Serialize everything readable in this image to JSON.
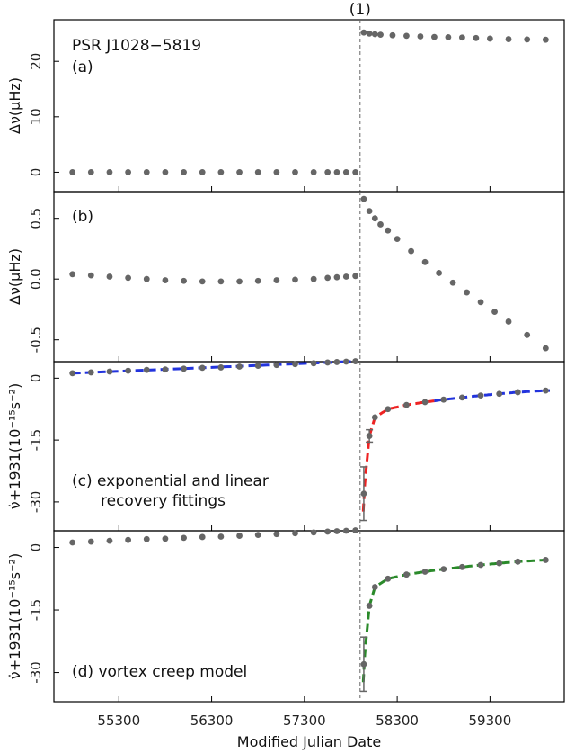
{
  "chart_data": {
    "type": "scatter",
    "xlabel": "Modified Julian Date",
    "xlim": [
      54600,
      60100
    ],
    "xticks": [
      55300,
      56300,
      57300,
      58300,
      59300
    ],
    "glitch": {
      "mjd": 57900,
      "label": "(1)"
    },
    "panels": [
      {
        "id": "a",
        "label": "(a)",
        "title": "PSR J1028−5819",
        "ylabel": "Δν(μHz)",
        "ylim": [
          -3.5,
          27.5
        ],
        "yticks": [
          0,
          10,
          20
        ],
        "points": [
          [
            54800,
            0.0
          ],
          [
            55000,
            0.0
          ],
          [
            55200,
            0.0
          ],
          [
            55400,
            0.0
          ],
          [
            55600,
            0.0
          ],
          [
            55800,
            0.0
          ],
          [
            56000,
            0.0
          ],
          [
            56200,
            0.0
          ],
          [
            56400,
            0.0
          ],
          [
            56600,
            0.0
          ],
          [
            56800,
            0.0
          ],
          [
            57000,
            0.0
          ],
          [
            57200,
            0.0
          ],
          [
            57400,
            0.0
          ],
          [
            57550,
            0.0
          ],
          [
            57650,
            0.0
          ],
          [
            57750,
            0.0
          ],
          [
            57850,
            0.0
          ],
          [
            57940,
            25.2
          ],
          [
            58000,
            25.0
          ],
          [
            58060,
            24.9
          ],
          [
            58120,
            24.8
          ],
          [
            58250,
            24.7
          ],
          [
            58400,
            24.6
          ],
          [
            58550,
            24.5
          ],
          [
            58700,
            24.4
          ],
          [
            58850,
            24.35
          ],
          [
            59000,
            24.3
          ],
          [
            59150,
            24.2
          ],
          [
            59300,
            24.1
          ],
          [
            59500,
            24.0
          ],
          [
            59700,
            23.95
          ],
          [
            59900,
            23.9
          ]
        ]
      },
      {
        "id": "b",
        "label": "(b)",
        "ylabel": "Δν(μHz)",
        "ylim": [
          -0.68,
          0.72
        ],
        "yticks": [
          -0.5,
          0.0,
          0.5
        ],
        "points": [
          [
            54800,
            0.04
          ],
          [
            55000,
            0.03
          ],
          [
            55200,
            0.02
          ],
          [
            55400,
            0.01
          ],
          [
            55600,
            0.0
          ],
          [
            55800,
            -0.01
          ],
          [
            56000,
            -0.015
          ],
          [
            56200,
            -0.02
          ],
          [
            56400,
            -0.02
          ],
          [
            56600,
            -0.02
          ],
          [
            56800,
            -0.015
          ],
          [
            57000,
            -0.01
          ],
          [
            57200,
            -0.005
          ],
          [
            57400,
            0.0
          ],
          [
            57550,
            0.01
          ],
          [
            57650,
            0.015
          ],
          [
            57750,
            0.02
          ],
          [
            57850,
            0.025
          ],
          [
            57940,
            0.66
          ],
          [
            58000,
            0.56
          ],
          [
            58060,
            0.5
          ],
          [
            58120,
            0.45
          ],
          [
            58200,
            0.4
          ],
          [
            58300,
            0.33
          ],
          [
            58450,
            0.23
          ],
          [
            58600,
            0.14
          ],
          [
            58750,
            0.05
          ],
          [
            58900,
            -0.03
          ],
          [
            59050,
            -0.11
          ],
          [
            59200,
            -0.19
          ],
          [
            59350,
            -0.27
          ],
          [
            59500,
            -0.35
          ],
          [
            59700,
            -0.46
          ],
          [
            59900,
            -0.57
          ]
        ]
      },
      {
        "id": "c",
        "label": "(c) exponential and linear",
        "label2": "recovery fittings",
        "ylabel": "ν̇+1931(10⁻¹⁵s⁻²)",
        "ylim": [
          -37,
          4
        ],
        "yticks": [
          -30,
          -15,
          0
        ],
        "points": [
          [
            54800,
            1.2
          ],
          [
            55000,
            1.4
          ],
          [
            55200,
            1.6
          ],
          [
            55400,
            1.8
          ],
          [
            55600,
            2.0
          ],
          [
            55800,
            2.1
          ],
          [
            56000,
            2.3
          ],
          [
            56200,
            2.5
          ],
          [
            56400,
            2.6
          ],
          [
            56600,
            2.8
          ],
          [
            56800,
            3.0
          ],
          [
            57000,
            3.2
          ],
          [
            57200,
            3.4
          ],
          [
            57400,
            3.6
          ],
          [
            57550,
            3.8
          ],
          [
            57650,
            3.9
          ],
          [
            57750,
            4.0
          ],
          [
            57850,
            4.1
          ]
        ],
        "errorbars": [
          [
            57940,
            -28,
            6.5
          ],
          [
            58000,
            -14,
            1.5
          ]
        ],
        "points2": [
          [
            57940,
            -28
          ],
          [
            58000,
            -14
          ],
          [
            58060,
            -9.5
          ],
          [
            58200,
            -7.5
          ],
          [
            58400,
            -6.5
          ],
          [
            58600,
            -5.8
          ],
          [
            58800,
            -5.2
          ],
          [
            59000,
            -4.7
          ],
          [
            59200,
            -4.2
          ],
          [
            59400,
            -3.8
          ],
          [
            59600,
            -3.4
          ],
          [
            59900,
            -3.0
          ]
        ],
        "fits": [
          {
            "color": "#2233dd",
            "segment": "pre",
            "from": 54800,
            "to": 57880,
            "a": 1.2,
            "b": 4.1
          },
          {
            "color": "#ee2222",
            "segment": "post",
            "from": 57920,
            "to": 58700,
            "model": "exp"
          },
          {
            "color": "#2233dd",
            "segment": "post",
            "from": 58700,
            "to": 59950,
            "model": "lin"
          }
        ]
      },
      {
        "id": "d",
        "label": "(d) vortex creep model",
        "ylabel": "ν̇+1931(10⁻¹⁵s⁻²)",
        "ylim": [
          -37,
          4
        ],
        "yticks": [
          -30,
          -15,
          0
        ],
        "points": [
          [
            54800,
            1.2
          ],
          [
            55000,
            1.4
          ],
          [
            55200,
            1.6
          ],
          [
            55400,
            1.8
          ],
          [
            55600,
            2.0
          ],
          [
            55800,
            2.1
          ],
          [
            56000,
            2.3
          ],
          [
            56200,
            2.5
          ],
          [
            56400,
            2.6
          ],
          [
            56600,
            2.8
          ],
          [
            56800,
            3.0
          ],
          [
            57000,
            3.2
          ],
          [
            57200,
            3.4
          ],
          [
            57400,
            3.6
          ],
          [
            57550,
            3.8
          ],
          [
            57650,
            3.9
          ],
          [
            57750,
            4.0
          ],
          [
            57850,
            4.1
          ]
        ],
        "errorbars": [
          [
            57940,
            -28,
            6.5
          ]
        ],
        "points2": [
          [
            57940,
            -28
          ],
          [
            58000,
            -14
          ],
          [
            58060,
            -9.5
          ],
          [
            58200,
            -7.5
          ],
          [
            58400,
            -6.5
          ],
          [
            58600,
            -5.8
          ],
          [
            58800,
            -5.2
          ],
          [
            59000,
            -4.7
          ],
          [
            59200,
            -4.2
          ],
          [
            59400,
            -3.8
          ],
          [
            59600,
            -3.4
          ],
          [
            59900,
            -3.0
          ]
        ],
        "fits": [
          {
            "color": "#2a8a2a",
            "segment": "post",
            "from": 57920,
            "to": 59950,
            "model": "creep"
          }
        ]
      }
    ]
  }
}
